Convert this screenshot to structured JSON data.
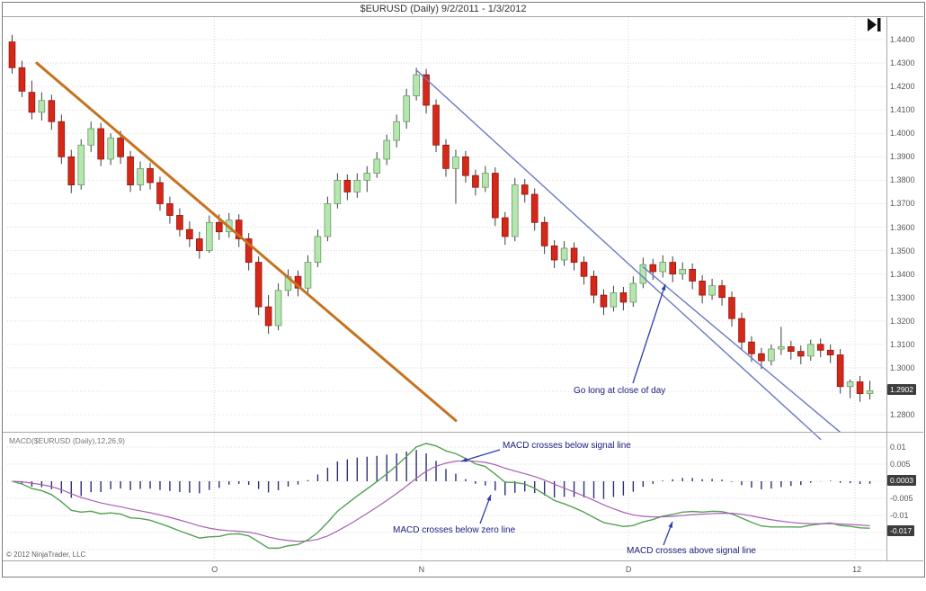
{
  "window": {
    "title": "$EURUSD (Daily) 9/2/2011 - 1/3/2012"
  },
  "toolbar": {
    "go_to_end_icon": "go-to-end"
  },
  "price_panel": {
    "badge": "1.2902",
    "annotation_go_long": "Go long at close of day"
  },
  "macd_panel": {
    "label": "MACD($EURUSD (Daily),12,26,9)",
    "badge_zero": "0.0003",
    "badge_value": "-0.017",
    "annotation_cross_below_signal": "MACD crosses below signal line",
    "annotation_cross_below_zero": "MACD crosses below zero line",
    "annotation_cross_above_signal": "MACD crosses above signal line"
  },
  "footer": {
    "copyright": "© 2012 NinjaTrader, LLC"
  },
  "chart_data": [
    {
      "type": "candlestick",
      "title": "$EURUSD (Daily) 9/2/2011 - 1/3/2012",
      "symbol": "$EURUSD",
      "interval": "Daily",
      "date_range": "9/2/2011 - 1/3/2012",
      "ylim": [
        1.276,
        1.446
      ],
      "y_ticks": [
        1.44,
        1.43,
        1.42,
        1.41,
        1.4,
        1.39,
        1.38,
        1.37,
        1.36,
        1.35,
        1.34,
        1.33,
        1.32,
        1.31,
        1.3,
        1.29,
        1.28
      ],
      "x_tick_labels": [
        {
          "label": "O",
          "index": 21
        },
        {
          "label": "N",
          "index": 42
        },
        {
          "label": "D",
          "index": 63
        },
        {
          "label": "12",
          "index": 86
        }
      ],
      "last_price": 1.2902,
      "colors": {
        "up": "#b5e6b0",
        "up_border": "#6a9a66",
        "down": "#d62819",
        "down_border": "#8f140c",
        "wick": "#3f3f3f"
      },
      "candles": [
        [
          1.439,
          1.442,
          1.4255,
          1.428
        ],
        [
          1.428,
          1.431,
          1.4155,
          1.418
        ],
        [
          1.4175,
          1.4225,
          1.406,
          1.409
        ],
        [
          1.409,
          1.4175,
          1.4055,
          1.414
        ],
        [
          1.414,
          1.4165,
          1.4015,
          1.405
        ],
        [
          1.405,
          1.408,
          1.387,
          1.39
        ],
        [
          1.39,
          1.393,
          1.3745,
          1.378
        ],
        [
          1.378,
          1.3975,
          1.376,
          1.395
        ],
        [
          1.395,
          1.405,
          1.392,
          1.402
        ],
        [
          1.402,
          1.4045,
          1.386,
          1.389
        ],
        [
          1.389,
          1.4,
          1.3865,
          1.398
        ],
        [
          1.398,
          1.401,
          1.387,
          1.39
        ],
        [
          1.39,
          1.3925,
          1.375,
          1.378
        ],
        [
          1.378,
          1.388,
          1.3755,
          1.385
        ],
        [
          1.385,
          1.3875,
          1.376,
          1.379
        ],
        [
          1.379,
          1.3815,
          1.367,
          1.37
        ],
        [
          1.37,
          1.373,
          1.3615,
          1.365
        ],
        [
          1.365,
          1.368,
          1.356,
          1.359
        ],
        [
          1.359,
          1.3625,
          1.3515,
          1.355
        ],
        [
          1.355,
          1.358,
          1.3465,
          1.35
        ],
        [
          1.35,
          1.365,
          1.349,
          1.362
        ],
        [
          1.362,
          1.3655,
          1.3545,
          1.358
        ],
        [
          1.358,
          1.366,
          1.3555,
          1.363
        ],
        [
          1.363,
          1.3655,
          1.3515,
          1.355
        ],
        [
          1.355,
          1.3575,
          1.3415,
          1.345
        ],
        [
          1.345,
          1.3475,
          1.3225,
          1.326
        ],
        [
          1.326,
          1.331,
          1.3145,
          1.318
        ],
        [
          1.318,
          1.336,
          1.316,
          1.333
        ],
        [
          1.333,
          1.342,
          1.3305,
          1.339
        ],
        [
          1.339,
          1.3415,
          1.3305,
          1.334
        ],
        [
          1.334,
          1.348,
          1.332,
          1.345
        ],
        [
          1.345,
          1.359,
          1.343,
          1.356
        ],
        [
          1.356,
          1.373,
          1.354,
          1.37
        ],
        [
          1.37,
          1.383,
          1.368,
          1.38
        ],
        [
          1.38,
          1.3825,
          1.3715,
          1.375
        ],
        [
          1.375,
          1.383,
          1.3725,
          1.38
        ],
        [
          1.38,
          1.386,
          1.375,
          1.383
        ],
        [
          1.383,
          1.392,
          1.381,
          1.389
        ],
        [
          1.389,
          1.3995,
          1.3865,
          1.397
        ],
        [
          1.397,
          1.408,
          1.394,
          1.405
        ],
        [
          1.405,
          1.419,
          1.402,
          1.416
        ],
        [
          1.416,
          1.428,
          1.414,
          1.425
        ],
        [
          1.425,
          1.4275,
          1.4085,
          1.412
        ],
        [
          1.412,
          1.4145,
          1.392,
          1.395
        ],
        [
          1.395,
          1.3975,
          1.3815,
          1.385
        ],
        [
          1.385,
          1.393,
          1.37,
          1.39
        ],
        [
          1.39,
          1.3925,
          1.379,
          1.382
        ],
        [
          1.382,
          1.3845,
          1.3735,
          1.377
        ],
        [
          1.377,
          1.386,
          1.375,
          1.383
        ],
        [
          1.383,
          1.3855,
          1.3605,
          1.364
        ],
        [
          1.364,
          1.3665,
          1.3525,
          1.356
        ],
        [
          1.356,
          1.381,
          1.354,
          1.378
        ],
        [
          1.378,
          1.3805,
          1.3705,
          1.374
        ],
        [
          1.374,
          1.3765,
          1.3585,
          1.362
        ],
        [
          1.362,
          1.3645,
          1.3485,
          1.352
        ],
        [
          1.352,
          1.3545,
          1.3425,
          1.346
        ],
        [
          1.346,
          1.354,
          1.3435,
          1.351
        ],
        [
          1.351,
          1.3535,
          1.3415,
          1.345
        ],
        [
          1.345,
          1.3475,
          1.3355,
          1.339
        ],
        [
          1.339,
          1.3415,
          1.3275,
          1.331
        ],
        [
          1.331,
          1.3335,
          1.3225,
          1.326
        ],
        [
          1.326,
          1.335,
          1.324,
          1.332
        ],
        [
          1.332,
          1.3345,
          1.3245,
          1.328
        ],
        [
          1.328,
          1.339,
          1.326,
          1.336
        ],
        [
          1.336,
          1.347,
          1.334,
          1.344
        ],
        [
          1.344,
          1.3465,
          1.3375,
          1.341
        ],
        [
          1.341,
          1.348,
          1.3385,
          1.345
        ],
        [
          1.345,
          1.3475,
          1.3365,
          1.34
        ],
        [
          1.34,
          1.345,
          1.3375,
          1.342
        ],
        [
          1.342,
          1.3445,
          1.3335,
          1.337
        ],
        [
          1.337,
          1.3395,
          1.3275,
          1.331
        ],
        [
          1.331,
          1.338,
          1.329,
          1.335
        ],
        [
          1.335,
          1.3375,
          1.3265,
          1.33
        ],
        [
          1.33,
          1.3325,
          1.3175,
          1.321
        ],
        [
          1.321,
          1.3235,
          1.3075,
          1.311
        ],
        [
          1.311,
          1.3135,
          1.3025,
          1.306
        ],
        [
          1.306,
          1.3085,
          1.2995,
          1.303
        ],
        [
          1.303,
          1.31,
          1.301,
          1.308
        ],
        [
          1.308,
          1.3175,
          1.3055,
          1.309
        ],
        [
          1.309,
          1.3115,
          1.3035,
          1.307
        ],
        [
          1.307,
          1.3095,
          1.3015,
          1.305
        ],
        [
          1.305,
          1.312,
          1.303,
          1.31
        ],
        [
          1.31,
          1.3125,
          1.3045,
          1.3075
        ],
        [
          1.3075,
          1.31,
          1.302,
          1.3055
        ],
        [
          1.3055,
          1.308,
          1.289,
          1.292
        ],
        [
          1.292,
          1.295,
          1.287,
          1.294
        ],
        [
          1.294,
          1.2965,
          1.2855,
          1.289
        ],
        [
          1.289,
          1.2945,
          1.2865,
          1.2902
        ]
      ],
      "trendlines": [
        {
          "name": "downtrend-line",
          "color": "#c57321",
          "width": 3,
          "from": {
            "index": 2.5,
            "price": 1.43
          },
          "to": {
            "index": 45,
            "price": 1.2775
          }
        },
        {
          "name": "wedge-upper-line",
          "color": "#6b79c4",
          "width": 1.4,
          "from": {
            "index": 41,
            "price": 1.427
          },
          "to": {
            "index": 82,
            "price": 1.2695
          }
        },
        {
          "name": "wedge-lower-line",
          "color": "#6b79c4",
          "width": 1.4,
          "from": {
            "index": 64,
            "price": 1.343
          },
          "to": {
            "index": 84,
            "price": 1.2725
          }
        }
      ],
      "annotations": [
        {
          "text": "Go long at close of day",
          "tip_index": 66,
          "tip_price": 1.335
        }
      ]
    },
    {
      "type": "macd",
      "label": "MACD($EURUSD (Daily),12,26,9)",
      "fast": 12,
      "slow": 26,
      "smooth": 9,
      "ylim": [
        -0.022,
        0.013
      ],
      "y_ticks": [
        "0.01",
        "0.005",
        "-0.005",
        "-0.01",
        "-0.015"
      ],
      "grid_values": [
        0.01,
        0.005,
        0,
        -0.005,
        -0.01,
        -0.015,
        -0.02
      ],
      "badges": {
        "diff": "0.0003",
        "value": "-0.017"
      },
      "colors": {
        "macd": "#55a055",
        "signal": "#a95fb5",
        "histogram": "#2b2f71"
      },
      "annotations": [
        "MACD crosses below signal line",
        "MACD crosses below zero line",
        "MACD crosses above signal line"
      ],
      "note": "MACD, signal and histogram values are derived from the candle closes with EMA(12,26,9)"
    }
  ]
}
